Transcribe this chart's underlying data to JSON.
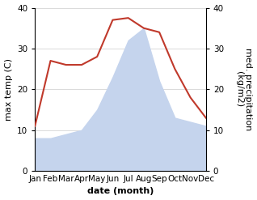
{
  "months": [
    "Jan",
    "Feb",
    "Mar",
    "Apr",
    "May",
    "Jun",
    "Jul",
    "Aug",
    "Sep",
    "Oct",
    "Nov",
    "Dec"
  ],
  "temperature": [
    11,
    27,
    26,
    26,
    28,
    37,
    37.5,
    35,
    34,
    25,
    18,
    13
  ],
  "precipitation": [
    8,
    8,
    9,
    10,
    15,
    23,
    32,
    35,
    22,
    13,
    12,
    11
  ],
  "temp_color": "#c0392b",
  "precip_color": "#c5d4ed",
  "ylim_left": [
    0,
    40
  ],
  "ylim_right": [
    0,
    40
  ],
  "xlabel": "date (month)",
  "ylabel_left": "max temp (C)",
  "ylabel_right": "med. precipitation\n(kg/m2)",
  "bg_color": "#ffffff",
  "grid_color": "#cccccc",
  "label_fontsize": 7.5,
  "axis_label_fontsize": 8
}
